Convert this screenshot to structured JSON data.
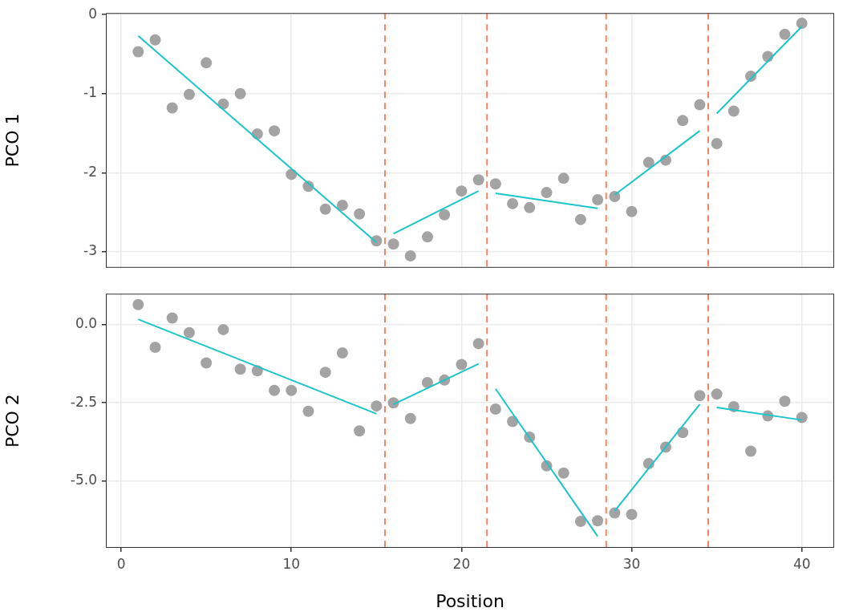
{
  "chart_data": [
    {
      "type": "scatter",
      "ylabel": "PCO 1",
      "grid": true,
      "tick_labels": "y",
      "x": [
        1,
        2,
        3,
        4,
        5,
        6,
        7,
        8,
        9,
        10,
        11,
        12,
        13,
        14,
        15,
        16,
        17,
        18,
        19,
        20,
        21,
        22,
        23,
        24,
        25,
        26,
        27,
        28,
        29,
        30,
        31,
        32,
        33,
        34,
        35,
        36,
        37,
        38,
        39,
        40
      ],
      "xlim": [
        -0.9,
        41.9
      ],
      "xticks": [
        0,
        10,
        20,
        30,
        40
      ],
      "ylim": [
        -3.2,
        0.02
      ],
      "yticks": [
        -3,
        -2,
        -1,
        0
      ],
      "series": [
        {
          "type": "scatter",
          "marker": "circle",
          "color": "#a3a3a3",
          "values": [
            -0.47,
            -0.32,
            -1.18,
            -1.01,
            -0.61,
            -1.13,
            -1.0,
            -1.51,
            -1.47,
            -2.02,
            -2.17,
            -2.46,
            -2.41,
            -2.52,
            -2.86,
            -2.9,
            -3.05,
            -2.81,
            -2.53,
            -2.23,
            -2.09,
            -2.14,
            -2.39,
            -2.44,
            -2.25,
            -2.07,
            -2.59,
            -2.34,
            -2.3,
            -2.49,
            -1.87,
            -1.84,
            -1.34,
            -1.14,
            -1.63,
            -1.22,
            -0.78,
            -0.53,
            -0.25,
            -0.11
          ]
        },
        {
          "type": "line",
          "color": "#1bc5cc",
          "line_style": "solid",
          "values": [
            -0.27,
            null,
            null,
            null,
            null,
            null,
            null,
            null,
            null,
            null,
            null,
            null,
            null,
            null,
            -2.88,
            null,
            null,
            null,
            null,
            null,
            null,
            null,
            null,
            null,
            null,
            null,
            null,
            null,
            null,
            null,
            null,
            null,
            null,
            null,
            null,
            null,
            null,
            null,
            null,
            null
          ]
        },
        {
          "type": "line",
          "color": "#1bc5cc",
          "line_style": "solid",
          "values": [
            null,
            null,
            null,
            null,
            null,
            null,
            null,
            null,
            null,
            null,
            null,
            null,
            null,
            null,
            null,
            -2.77,
            null,
            null,
            null,
            null,
            -2.23,
            null,
            null,
            null,
            null,
            null,
            null,
            null,
            null,
            null,
            null,
            null,
            null,
            null,
            null,
            null,
            null,
            null,
            null,
            null
          ]
        },
        {
          "type": "line",
          "color": "#1bc5cc",
          "line_style": "solid",
          "values": [
            null,
            null,
            null,
            null,
            null,
            null,
            null,
            null,
            null,
            null,
            null,
            null,
            null,
            null,
            null,
            null,
            null,
            null,
            null,
            null,
            null,
            -2.26,
            null,
            null,
            null,
            null,
            null,
            -2.45,
            null,
            null,
            null,
            null,
            null,
            null,
            null,
            null,
            null,
            null,
            null,
            null
          ]
        },
        {
          "type": "line",
          "color": "#1bc5cc",
          "line_style": "solid",
          "values": [
            null,
            null,
            null,
            null,
            null,
            null,
            null,
            null,
            null,
            null,
            null,
            null,
            null,
            null,
            null,
            null,
            null,
            null,
            null,
            null,
            null,
            null,
            null,
            null,
            null,
            null,
            null,
            null,
            -2.28,
            null,
            null,
            null,
            null,
            -1.47,
            null,
            null,
            null,
            null,
            null,
            null
          ]
        },
        {
          "type": "line",
          "color": "#1bc5cc",
          "line_style": "solid",
          "values": [
            null,
            null,
            null,
            null,
            null,
            null,
            null,
            null,
            null,
            null,
            null,
            null,
            null,
            null,
            null,
            null,
            null,
            null,
            null,
            null,
            null,
            null,
            null,
            null,
            null,
            null,
            null,
            null,
            null,
            null,
            null,
            null,
            null,
            null,
            -1.25,
            null,
            null,
            null,
            null,
            -0.15
          ]
        },
        {
          "type": "vline",
          "color": "#f4845f",
          "line_style": "dashed",
          "x": [
            15.5,
            21.5,
            28.5,
            34.5
          ]
        }
      ]
    },
    {
      "type": "scatter",
      "ylabel": "PCO 2",
      "xlabel": "Position",
      "grid": true,
      "x": [
        1,
        2,
        3,
        4,
        5,
        6,
        7,
        8,
        9,
        10,
        11,
        12,
        13,
        14,
        15,
        16,
        17,
        18,
        19,
        20,
        21,
        22,
        23,
        24,
        25,
        26,
        27,
        28,
        29,
        30,
        31,
        32,
        33,
        34,
        35,
        36,
        37,
        38,
        39,
        40
      ],
      "xlim": [
        -0.9,
        41.9
      ],
      "xticks": [
        0,
        10,
        20,
        30,
        40
      ],
      "ylim": [
        -7.15,
        1.0
      ],
      "yticks": [
        {
          "value": -5,
          "label": "-5.0"
        },
        -2.5,
        {
          "value": 0,
          "label": "0.0"
        }
      ],
      "series": [
        {
          "type": "scatter",
          "marker": "circle",
          "color": "#a3a3a3",
          "values": [
            0.65,
            -0.72,
            0.22,
            -0.25,
            -1.22,
            -0.15,
            -1.42,
            -1.47,
            -2.1,
            -2.1,
            -2.77,
            -1.52,
            -0.9,
            -3.4,
            -2.6,
            -2.5,
            -3.0,
            -1.85,
            -1.77,
            -1.27,
            -0.6,
            -2.7,
            -3.1,
            -3.6,
            -4.52,
            -4.75,
            -6.3,
            -6.28,
            -6.03,
            -6.08,
            -4.45,
            -3.92,
            -3.45,
            -2.27,
            -2.22,
            -2.62,
            -4.05,
            -2.92,
            -2.45,
            -2.97
          ]
        },
        {
          "type": "line",
          "color": "#1bc5cc",
          "line_style": "solid",
          "values": [
            0.18,
            null,
            null,
            null,
            null,
            null,
            null,
            null,
            null,
            null,
            null,
            null,
            null,
            null,
            -2.85,
            null,
            null,
            null,
            null,
            null,
            null,
            null,
            null,
            null,
            null,
            null,
            null,
            null,
            null,
            null,
            null,
            null,
            null,
            null,
            null,
            null,
            null,
            null,
            null,
            null
          ]
        },
        {
          "type": "line",
          "color": "#1bc5cc",
          "line_style": "solid",
          "values": [
            null,
            null,
            null,
            null,
            null,
            null,
            null,
            null,
            null,
            null,
            null,
            null,
            null,
            null,
            null,
            -2.55,
            null,
            null,
            null,
            null,
            -1.25,
            null,
            null,
            null,
            null,
            null,
            null,
            null,
            null,
            null,
            null,
            null,
            null,
            null,
            null,
            null,
            null,
            null,
            null,
            null
          ]
        },
        {
          "type": "line",
          "color": "#1bc5cc",
          "line_style": "solid",
          "values": [
            null,
            null,
            null,
            null,
            null,
            null,
            null,
            null,
            null,
            null,
            null,
            null,
            null,
            null,
            null,
            null,
            null,
            null,
            null,
            null,
            null,
            -2.05,
            null,
            null,
            null,
            null,
            null,
            -6.78,
            null,
            null,
            null,
            null,
            null,
            null,
            null,
            null,
            null,
            null,
            null,
            null
          ]
        },
        {
          "type": "line",
          "color": "#1bc5cc",
          "line_style": "solid",
          "values": [
            null,
            null,
            null,
            null,
            null,
            null,
            null,
            null,
            null,
            null,
            null,
            null,
            null,
            null,
            null,
            null,
            null,
            null,
            null,
            null,
            null,
            null,
            null,
            null,
            null,
            null,
            null,
            null,
            -5.97,
            null,
            null,
            null,
            null,
            -2.55,
            null,
            null,
            null,
            null,
            null,
            null
          ]
        },
        {
          "type": "line",
          "color": "#1bc5cc",
          "line_style": "solid",
          "values": [
            null,
            null,
            null,
            null,
            null,
            null,
            null,
            null,
            null,
            null,
            null,
            null,
            null,
            null,
            null,
            null,
            null,
            null,
            null,
            null,
            null,
            null,
            null,
            null,
            null,
            null,
            null,
            null,
            null,
            null,
            null,
            null,
            null,
            null,
            -2.65,
            null,
            null,
            null,
            null,
            -3.05
          ]
        },
        {
          "type": "vline",
          "color": "#f4845f",
          "line_style": "dashed",
          "x": [
            15.5,
            21.5,
            28.5,
            34.5
          ]
        }
      ]
    }
  ]
}
